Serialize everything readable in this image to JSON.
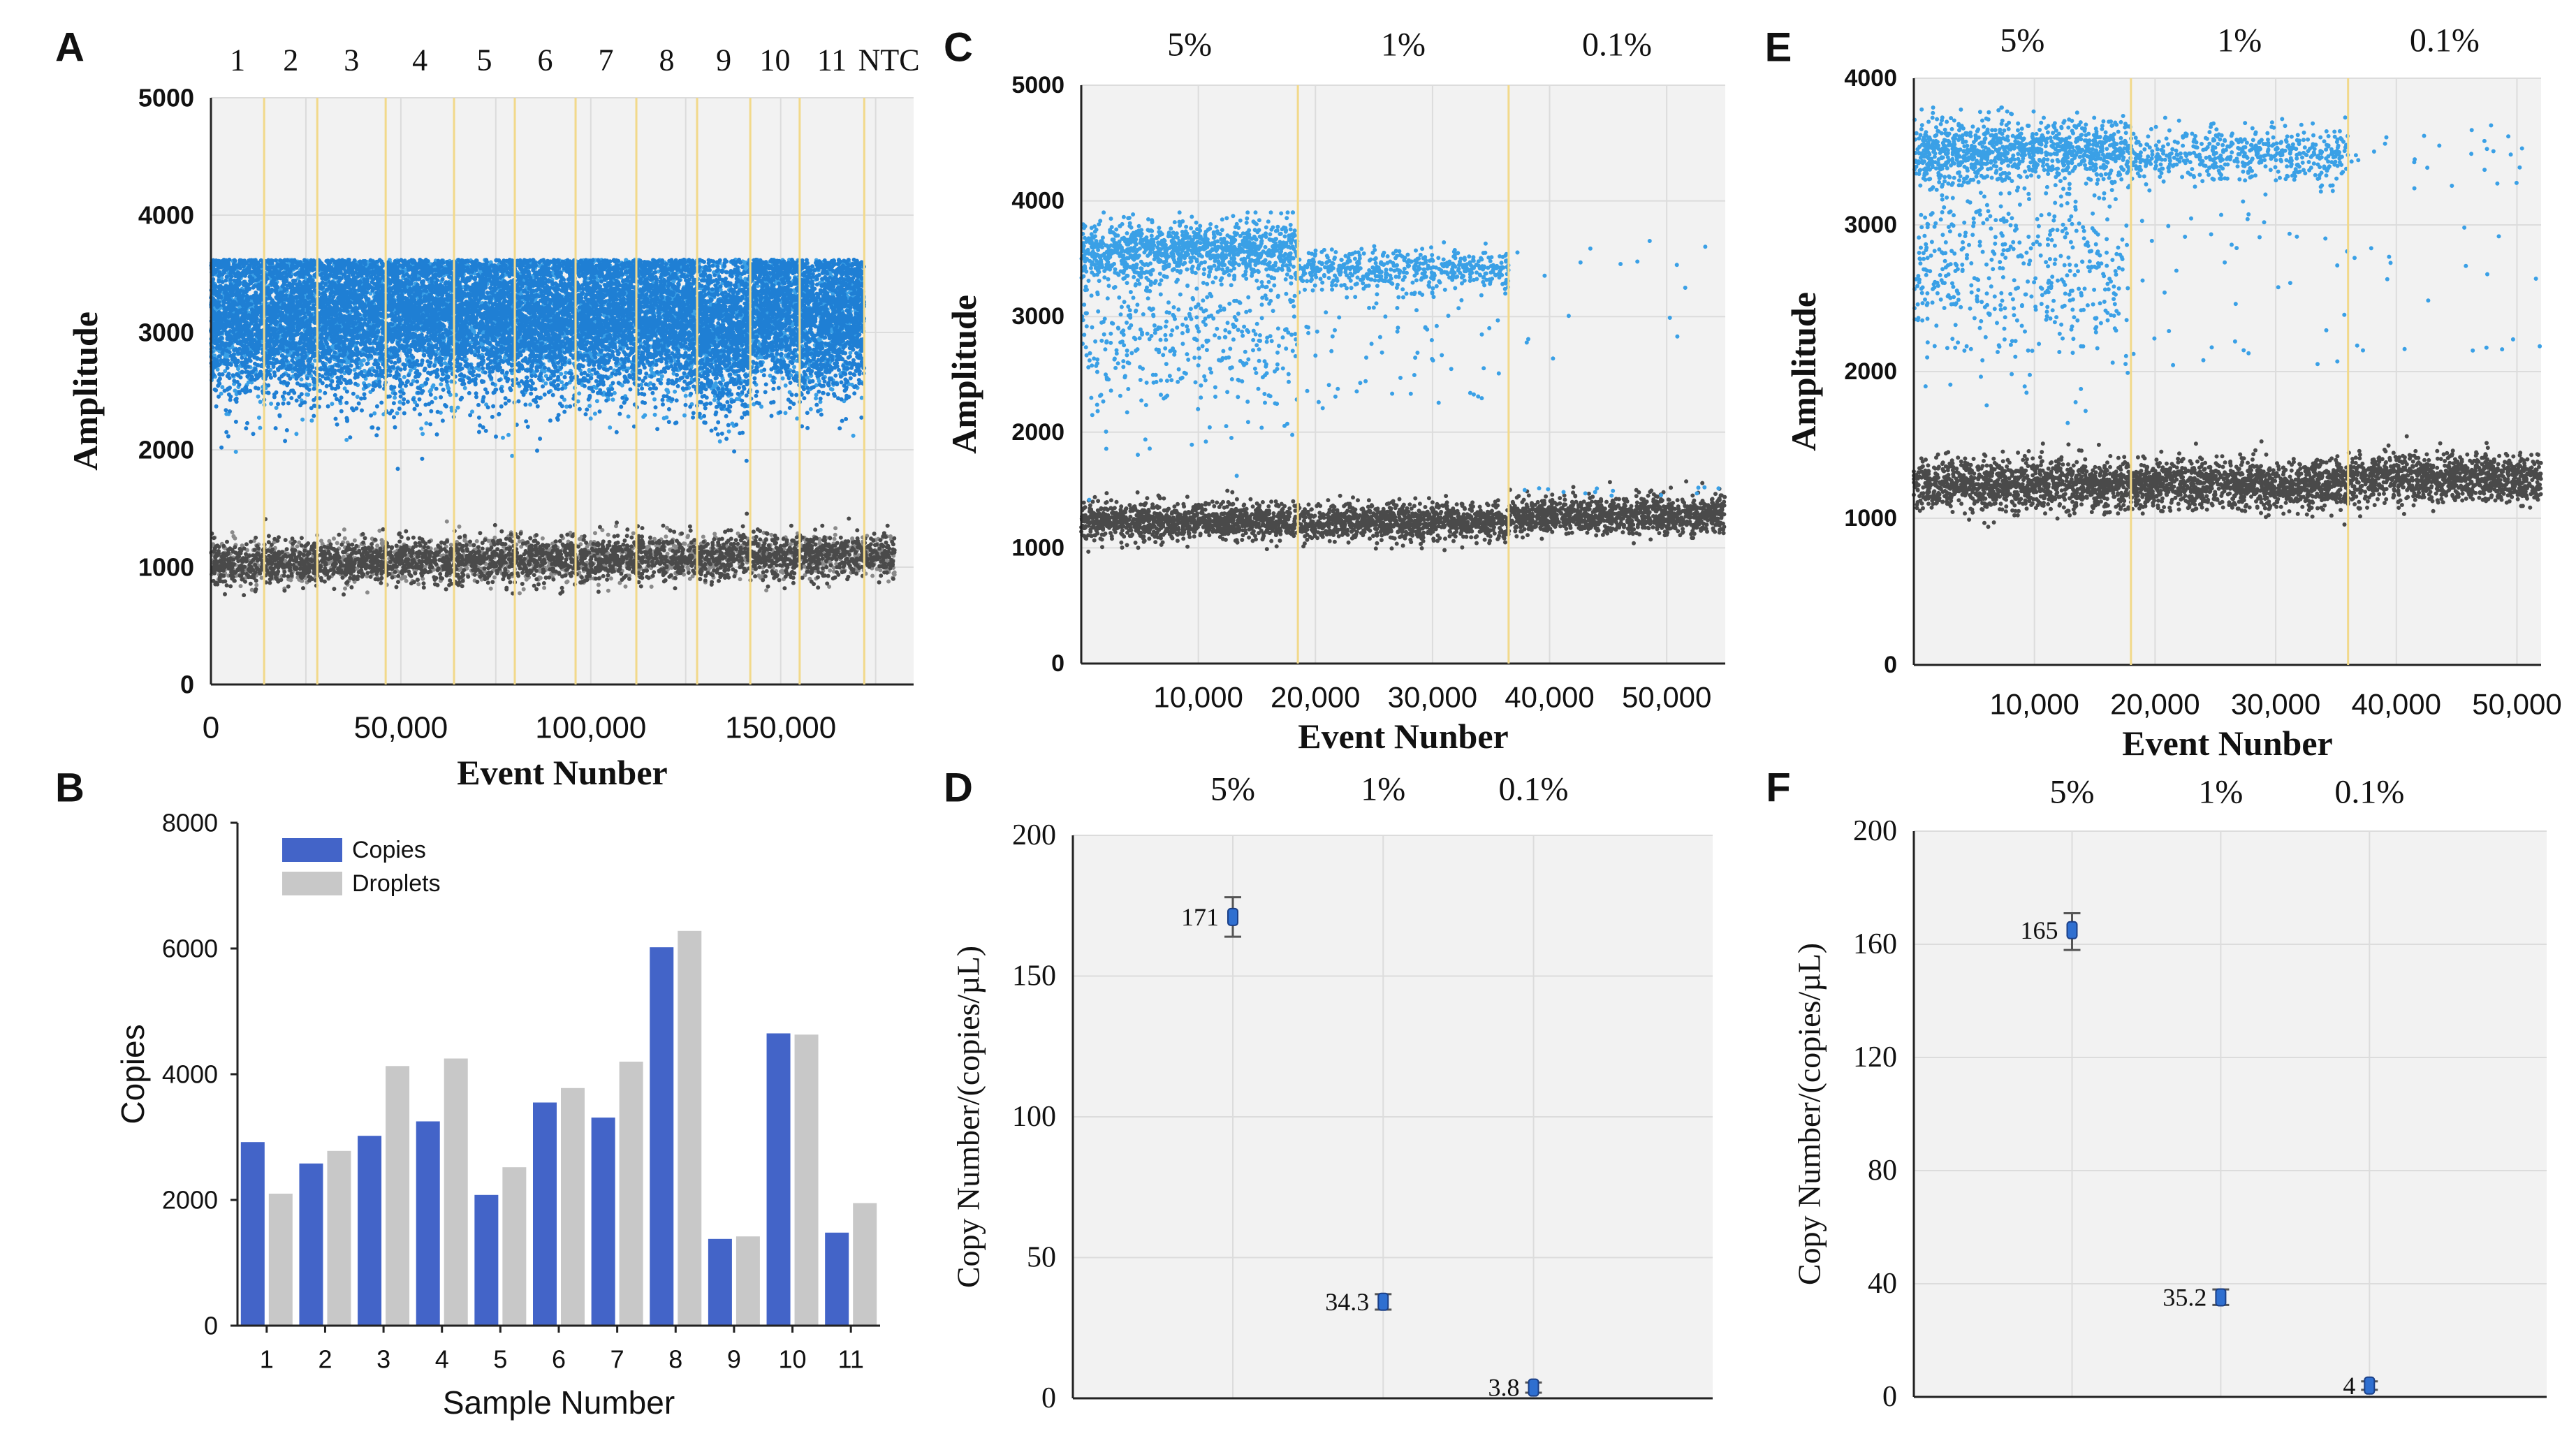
{
  "figure": {
    "colors": {
      "blue_droplet": "#1f7fd4",
      "blue_droplet_light": "#3aa0e6",
      "grey_droplet": "#4a4a4a",
      "grey_droplet_light": "#8a8a8a",
      "plot_bg": "#f2f2f2",
      "grid": "#dcdcdc",
      "divider": "#f2d98a",
      "bar_copies": "#4364c8",
      "bar_droplets": "#c8c8c8",
      "point": "#2f6fd0"
    }
  },
  "chart_data": [
    {
      "panel": "A",
      "type": "scatter",
      "title": "",
      "xlabel": "Event Nunber",
      "ylabel": "Amplitude",
      "xlim": [
        0,
        185000
      ],
      "ylim": [
        0,
        5000
      ],
      "xticks": [
        0,
        50000,
        100000,
        150000
      ],
      "xtick_labels": [
        "0",
        "50,000",
        "100,000",
        "150,000"
      ],
      "yticks": [
        0,
        1000,
        2000,
        3000,
        4000,
        5000
      ],
      "ytick_labels": [
        "0",
        "1000",
        "2000",
        "3000",
        "4000",
        "5000"
      ],
      "grid": true,
      "well_labels": [
        "1",
        "2",
        "3",
        "4",
        "5",
        "6",
        "7",
        "8",
        "9",
        "10",
        "11",
        "NTC"
      ],
      "well_boundaries": [
        14000,
        28000,
        46000,
        64000,
        80000,
        96000,
        112000,
        128000,
        142000,
        155000,
        172000
      ],
      "series": [
        {
          "name": "Positive droplets",
          "color": "blue",
          "amplitude_band": [
            1900,
            3600
          ],
          "segments": [
            [
              0,
              14000,
              3150
            ],
            [
              14000,
              28000,
              3150
            ],
            [
              28000,
              46000,
              3150
            ],
            [
              46000,
              64000,
              3150
            ],
            [
              64000,
              80000,
              3150
            ],
            [
              80000,
              96000,
              3150
            ],
            [
              96000,
              112000,
              3150
            ],
            [
              112000,
              128000,
              3150
            ],
            [
              128000,
              142000,
              3000
            ],
            [
              142000,
              155000,
              3200
            ],
            [
              155000,
              172000,
              3150
            ]
          ]
        },
        {
          "name": "Negative droplets",
          "color": "grey",
          "amplitude_center": 1050,
          "amplitude_band": [
            700,
            1350
          ]
        }
      ]
    },
    {
      "panel": "B",
      "type": "bar",
      "title": "",
      "xlabel": "Sample Number",
      "ylabel": "Copies",
      "categories": [
        "1",
        "2",
        "3",
        "4",
        "5",
        "6",
        "7",
        "8",
        "9",
        "10",
        "11"
      ],
      "ylim": [
        0,
        8000
      ],
      "yticks": [
        0,
        2000,
        4000,
        6000,
        8000
      ],
      "ytick_labels": [
        "0",
        "2000",
        "4000",
        "6000",
        "8000"
      ],
      "legend_position": "top-left",
      "series": [
        {
          "name": "Copies",
          "values": [
            2920,
            2580,
            3020,
            3250,
            2080,
            3550,
            3310,
            6020,
            1380,
            4650,
            1480
          ]
        },
        {
          "name": "Droplets",
          "values": [
            2100,
            2780,
            4130,
            4250,
            2520,
            3780,
            4200,
            6280,
            1420,
            4630,
            1950
          ]
        }
      ]
    },
    {
      "panel": "C",
      "type": "scatter",
      "title": "",
      "xlabel": "Event Nunber",
      "ylabel": "Amplitude",
      "xlim": [
        0,
        55000
      ],
      "ylim": [
        0,
        5000
      ],
      "xticks": [
        10000,
        20000,
        30000,
        40000,
        50000
      ],
      "xtick_labels": [
        "10,000",
        "20,000",
        "30,000",
        "40,000",
        "50,000"
      ],
      "yticks": [
        0,
        1000,
        2000,
        3000,
        4000,
        5000
      ],
      "ytick_labels": [
        "0",
        "1000",
        "2000",
        "3000",
        "4000",
        "5000"
      ],
      "grid": true,
      "group_labels": [
        "5%",
        "1%",
        "0.1%"
      ],
      "group_boundaries": [
        18500,
        36500
      ],
      "series": [
        {
          "name": "Positive droplets",
          "color": "blue",
          "amplitude_center": 3550
        },
        {
          "name": "Negative droplets",
          "color": "grey",
          "amplitude_center": 1250
        }
      ]
    },
    {
      "panel": "D",
      "type": "scatter",
      "title": "",
      "xlabel": "",
      "ylabel": "Copy Number/(copies/µL)",
      "categories": [
        "5%",
        "1%",
        "0.1%"
      ],
      "ylim": [
        0,
        200
      ],
      "yticks": [
        0,
        50,
        100,
        150,
        200
      ],
      "ytick_labels": [
        "0",
        "50",
        "100",
        "150",
        "200"
      ],
      "grid": true,
      "values": [
        171,
        34.3,
        3.8
      ],
      "value_labels": [
        "171",
        "34.3",
        "3.8"
      ],
      "error_low": [
        164,
        31.5,
        2.0
      ],
      "error_high": [
        178,
        37.0,
        5.6
      ]
    },
    {
      "panel": "E",
      "type": "scatter",
      "title": "",
      "xlabel": "Event Nunber",
      "ylabel": "Amplitude",
      "xlim": [
        0,
        52000
      ],
      "ylim": [
        0,
        4000
      ],
      "xticks": [
        10000,
        20000,
        30000,
        40000,
        50000
      ],
      "xtick_labels": [
        "10,000",
        "20,000",
        "30,000",
        "40,000",
        "50,000"
      ],
      "yticks": [
        0,
        1000,
        2000,
        3000,
        4000
      ],
      "ytick_labels": [
        "0",
        "1000",
        "2000",
        "3000",
        "4000"
      ],
      "grid": true,
      "group_labels": [
        "5%",
        "1%",
        "0.1%"
      ],
      "group_boundaries": [
        18000,
        36000
      ],
      "series": [
        {
          "name": "Positive droplets",
          "color": "blue",
          "amplitude_center": 3480
        },
        {
          "name": "Negative droplets",
          "color": "grey",
          "amplitude_center": 1250
        }
      ]
    },
    {
      "panel": "F",
      "type": "scatter",
      "title": "",
      "xlabel": "",
      "ylabel": "Copy Number/(copies/µL)",
      "categories": [
        "5%",
        "1%",
        "0.1%"
      ],
      "ylim": [
        0,
        200
      ],
      "yticks": [
        0,
        40,
        80,
        120,
        160,
        200
      ],
      "ytick_labels": [
        "0",
        "40",
        "80",
        "120",
        "160",
        "200"
      ],
      "grid": true,
      "values": [
        165,
        35.2,
        4
      ],
      "value_labels": [
        "165",
        "35.2",
        "4"
      ],
      "error_low": [
        158,
        32.5,
        2.5
      ],
      "error_high": [
        171,
        38.0,
        5.5
      ]
    }
  ]
}
